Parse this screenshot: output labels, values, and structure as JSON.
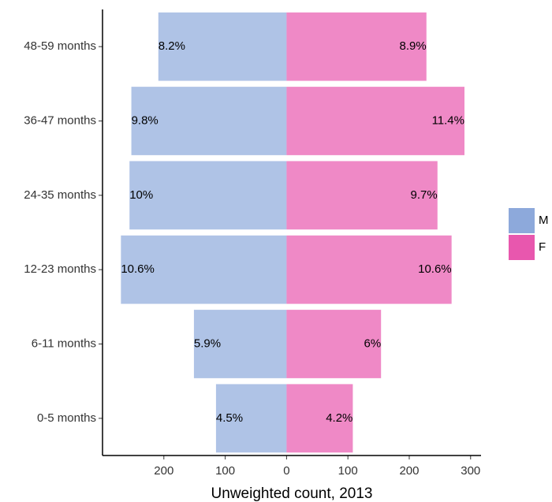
{
  "chart_data": {
    "type": "pyramid",
    "x_label": "Unweighted count, 2013",
    "categories": [
      "0-5 months",
      "6-11 months",
      "12-23 months",
      "24-35 months",
      "36-47 months",
      "48-59 months"
    ],
    "series": [
      {
        "name": "M",
        "color": "#8DA9DB",
        "values": [
          -115,
          -151,
          -270,
          -256,
          -253,
          -209
        ],
        "value_labels": [
          "4.5%",
          "5.9%",
          "10.6%",
          "10%",
          "9.8%",
          "8.2%"
        ]
      },
      {
        "name": "F",
        "color": "#E857AE",
        "values": [
          108,
          154,
          269,
          246,
          290,
          228
        ],
        "value_labels": [
          "4.2%",
          "6%",
          "10.6%",
          "9.7%",
          "11.4%",
          "8.9%"
        ]
      }
    ],
    "xlim": [
      -300,
      317
    ],
    "xticks": [
      {
        "value": -200,
        "label": "200"
      },
      {
        "value": -100,
        "label": "100"
      },
      0,
      100,
      200,
      300
    ],
    "legend_position": "right"
  }
}
